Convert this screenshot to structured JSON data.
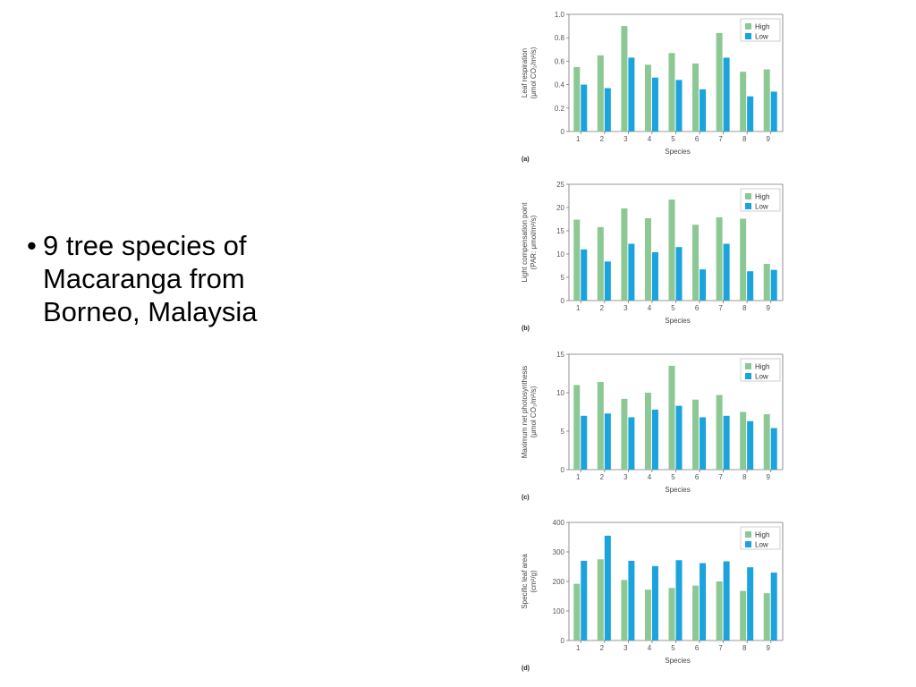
{
  "bullet": {
    "dot": "•",
    "text": "9 tree species of Macaranga from Borneo, Malaysia"
  },
  "colors": {
    "high": "#8cc894",
    "low": "#1aa3dc",
    "axis": "#777777"
  },
  "chart_data": [
    {
      "type": "bar",
      "panel_label": "(a)",
      "categories": [
        "1",
        "2",
        "3",
        "4",
        "5",
        "6",
        "7",
        "8",
        "9"
      ],
      "xlabel": "Species",
      "ylabel": [
        "Leaf respiration",
        "(μmol CO₂/m²/s)"
      ],
      "ylim": [
        0,
        1.0
      ],
      "yticks": [
        "0",
        "0.2",
        "0.4",
        "0.6",
        "0.8",
        "1.0"
      ],
      "legend_position": "top-right",
      "series": [
        {
          "name": "High",
          "values": [
            0.55,
            0.65,
            0.9,
            0.57,
            0.67,
            0.58,
            0.84,
            0.51,
            0.53
          ]
        },
        {
          "name": "Low",
          "values": [
            0.4,
            0.37,
            0.63,
            0.46,
            0.44,
            0.36,
            0.63,
            0.3,
            0.34
          ]
        }
      ]
    },
    {
      "type": "bar",
      "panel_label": "(b)",
      "categories": [
        "1",
        "2",
        "3",
        "4",
        "5",
        "6",
        "7",
        "8",
        "9"
      ],
      "xlabel": "Species",
      "ylabel": [
        "Light compensation point",
        "(PAR: μmol/m²/s)"
      ],
      "ylim": [
        0,
        25
      ],
      "yticks": [
        "0",
        "5",
        "10",
        "15",
        "20",
        "25"
      ],
      "legend_position": "top-right",
      "series": [
        {
          "name": "High",
          "values": [
            17.4,
            15.8,
            19.8,
            17.7,
            21.7,
            16.3,
            17.9,
            17.6,
            7.9
          ]
        },
        {
          "name": "Low",
          "values": [
            11.0,
            8.4,
            12.2,
            10.4,
            11.5,
            6.7,
            12.2,
            6.3,
            6.6
          ]
        }
      ]
    },
    {
      "type": "bar",
      "panel_label": "(c)",
      "categories": [
        "1",
        "2",
        "3",
        "4",
        "5",
        "6",
        "7",
        "8",
        "9"
      ],
      "xlabel": "Species",
      "ylabel": [
        "Maximum net photosynthesis",
        "(μmol CO₂/m²/s)"
      ],
      "ylim": [
        0,
        15
      ],
      "yticks": [
        "0",
        "5",
        "10",
        "15"
      ],
      "legend_position": "top-right",
      "series": [
        {
          "name": "High",
          "values": [
            11.0,
            11.4,
            9.2,
            10.0,
            13.5,
            9.1,
            9.7,
            7.5,
            7.2
          ]
        },
        {
          "name": "Low",
          "values": [
            7.0,
            7.3,
            6.8,
            7.8,
            8.3,
            6.8,
            7.0,
            6.3,
            5.4
          ]
        }
      ]
    },
    {
      "type": "bar",
      "panel_label": "(d)",
      "categories": [
        "1",
        "2",
        "3",
        "4",
        "5",
        "6",
        "7",
        "8",
        "9"
      ],
      "xlabel": "Species",
      "ylabel": [
        "Specific leaf area",
        "(cm²/g)"
      ],
      "ylim": [
        0,
        400
      ],
      "yticks": [
        "0",
        "100",
        "200",
        "300",
        "400"
      ],
      "legend_position": "top-right",
      "series": [
        {
          "name": "High",
          "values": [
            192,
            275,
            205,
            172,
            178,
            186,
            200,
            168,
            160
          ]
        },
        {
          "name": "Low",
          "values": [
            270,
            355,
            270,
            252,
            272,
            262,
            268,
            248,
            230
          ]
        }
      ]
    }
  ]
}
